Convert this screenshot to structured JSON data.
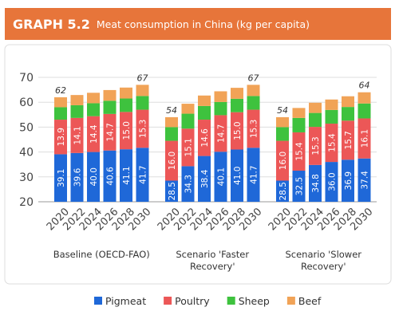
{
  "chart_data": {
    "type": "bar",
    "stacked": true,
    "title": "GRAPH 5.2",
    "subtitle": "Meat consumption in China (kg per capita)",
    "groups": [
      {
        "name": "Baseline (OECD-FAO)",
        "categories": [
          "2020",
          "2022",
          "2024",
          "2026",
          "2028",
          "2030"
        ]
      },
      {
        "name": "Scenario 'Faster Recovery'",
        "categories": [
          "2020",
          "2022",
          "2024",
          "2026",
          "2028",
          "2030"
        ]
      },
      {
        "name": "Scenario 'Slower Recovery'",
        "categories": [
          "2020",
          "2022",
          "2024",
          "2026",
          "2028",
          "2030"
        ]
      }
    ],
    "series": [
      {
        "name": "Pigmeat",
        "color": "#1f68d8",
        "values": [
          [
            39.1,
            39.6,
            40.0,
            40.6,
            41.1,
            41.7
          ],
          [
            28.5,
            34.3,
            38.4,
            40.1,
            41.0,
            41.7
          ],
          [
            28.5,
            32.5,
            34.8,
            36.0,
            36.9,
            37.4
          ]
        ],
        "value_labels": [
          [
            "39.1",
            "39.6",
            "40.0",
            "40.6",
            "41.1",
            "41.7"
          ],
          [
            "28.5",
            "34.3",
            "38.4",
            "40.1",
            "41.0",
            "41.7"
          ],
          [
            "28.5",
            "32.5",
            "34.8",
            "36.0",
            "36.9",
            "37.4"
          ]
        ]
      },
      {
        "name": "Poultry",
        "color": "#ec5757",
        "values": [
          [
            13.9,
            14.1,
            14.4,
            14.7,
            15.0,
            15.3
          ],
          [
            16.0,
            15.1,
            14.6,
            14.7,
            15.0,
            15.3
          ],
          [
            16.0,
            15.4,
            15.3,
            15.4,
            15.7,
            16.1
          ]
        ],
        "value_labels": [
          [
            "13.9",
            "14.1",
            "14.4",
            "14.7",
            "15.0",
            "15.3"
          ],
          [
            "16.0",
            "15.1",
            "14.6",
            "14.7",
            "15.0",
            "15.3"
          ],
          [
            "16.0",
            "15.4",
            "15.3",
            "15.4",
            "15.7",
            "16.1"
          ]
        ]
      },
      {
        "name": "Sheep",
        "color": "#3ec23e",
        "values": [
          [
            5.0,
            5.1,
            5.2,
            5.3,
            5.4,
            5.5
          ],
          [
            5.5,
            6.0,
            5.5,
            5.3,
            5.4,
            5.5
          ],
          [
            5.5,
            5.8,
            5.6,
            5.5,
            5.5,
            6.0
          ]
        ]
      },
      {
        "name": "Beef",
        "color": "#f1a357",
        "values": [
          [
            4.0,
            4.1,
            4.2,
            4.3,
            4.4,
            4.5
          ],
          [
            4.0,
            4.0,
            4.2,
            4.3,
            4.4,
            4.5
          ],
          [
            4.0,
            4.0,
            4.1,
            4.2,
            4.3,
            4.5
          ]
        ]
      }
    ],
    "totals": [
      [
        62,
        null,
        null,
        null,
        null,
        67
      ],
      [
        54,
        null,
        null,
        null,
        null,
        67
      ],
      [
        54,
        null,
        null,
        null,
        null,
        64
      ]
    ],
    "ylim": [
      20,
      70
    ],
    "yticks": [
      20,
      30,
      40,
      50,
      60,
      70
    ],
    "grid": true
  }
}
